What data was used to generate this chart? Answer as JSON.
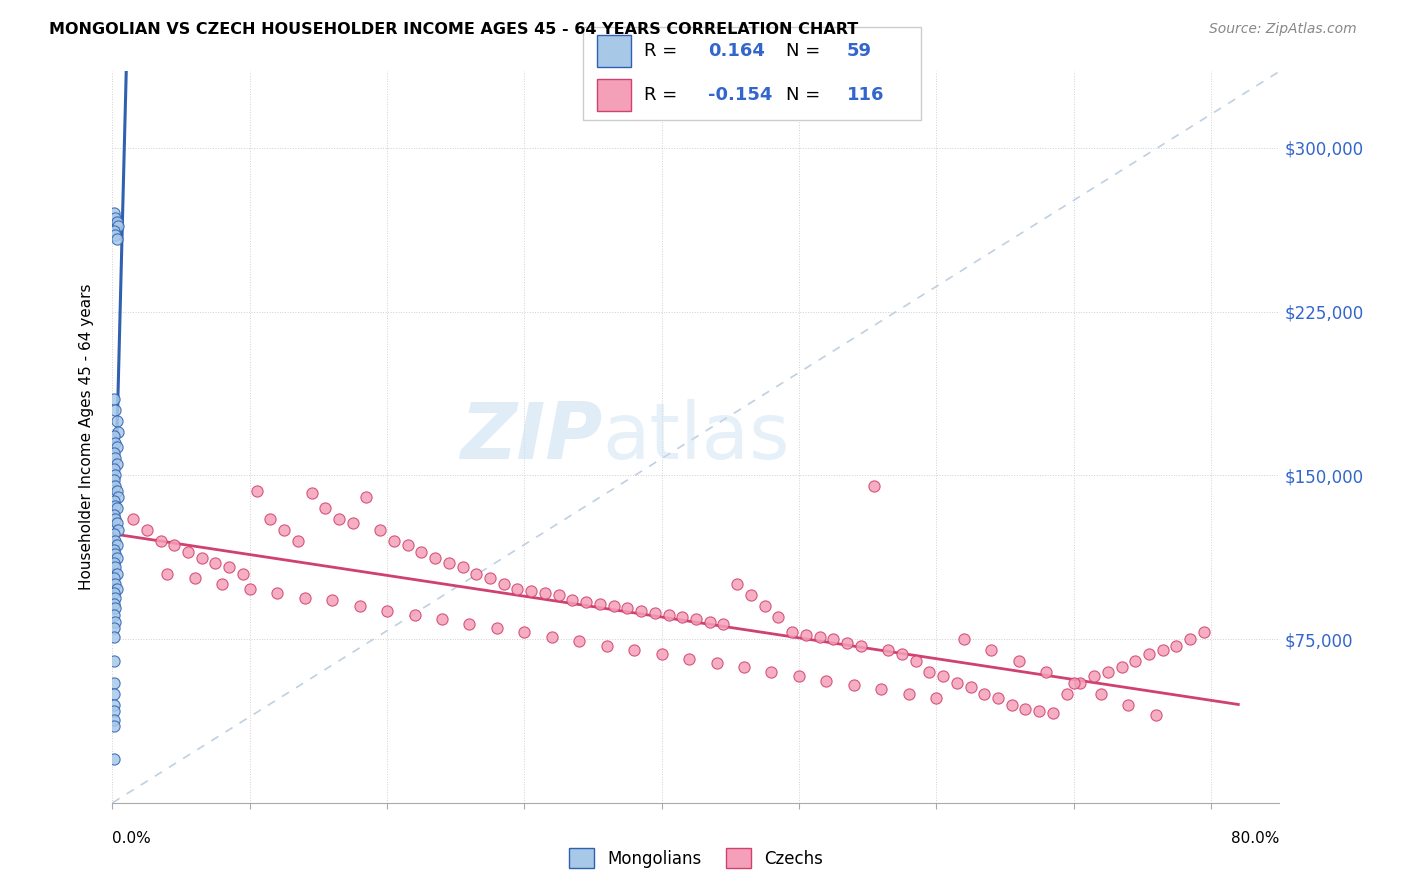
{
  "title": "MONGOLIAN VS CZECH HOUSEHOLDER INCOME AGES 45 - 64 YEARS CORRELATION CHART",
  "source": "Source: ZipAtlas.com",
  "ylabel": "Householder Income Ages 45 - 64 years",
  "mongolian_R": 0.164,
  "mongolian_N": 59,
  "czech_R": -0.154,
  "czech_N": 116,
  "mongolian_color": "#a8c8e8",
  "czech_color": "#f4a0b8",
  "mongolian_line_color": "#3060b0",
  "czech_line_color": "#d04070",
  "diagonal_color": "#c0d0e0",
  "ytick_labels": [
    "$75,000",
    "$150,000",
    "$225,000",
    "$300,000"
  ],
  "ytick_values": [
    75000,
    150000,
    225000,
    300000
  ],
  "ymin": 0,
  "ymax": 335000,
  "xmin": 0.0,
  "xmax": 0.85,
  "mong_x": [
    0.001,
    0.002,
    0.003,
    0.003,
    0.004,
    0.001,
    0.002,
    0.003,
    0.001,
    0.002,
    0.003,
    0.004,
    0.001,
    0.002,
    0.003,
    0.001,
    0.002,
    0.003,
    0.001,
    0.002,
    0.001,
    0.002,
    0.003,
    0.004,
    0.001,
    0.002,
    0.003,
    0.001,
    0.002,
    0.003,
    0.004,
    0.001,
    0.002,
    0.003,
    0.001,
    0.002,
    0.003,
    0.001,
    0.002,
    0.003,
    0.001,
    0.002,
    0.003,
    0.001,
    0.002,
    0.001,
    0.002,
    0.001,
    0.002,
    0.001,
    0.001,
    0.001,
    0.001,
    0.001,
    0.001,
    0.001,
    0.001,
    0.001,
    0.001
  ],
  "mong_y": [
    270000,
    268000,
    265000,
    266000,
    264000,
    262000,
    260000,
    258000,
    185000,
    180000,
    175000,
    170000,
    168000,
    165000,
    163000,
    160000,
    158000,
    155000,
    153000,
    150000,
    148000,
    145000,
    143000,
    140000,
    138000,
    136000,
    135000,
    132000,
    130000,
    128000,
    125000,
    123000,
    120000,
    118000,
    116000,
    114000,
    112000,
    110000,
    108000,
    105000,
    103000,
    100000,
    98000,
    96000,
    94000,
    91000,
    89000,
    86000,
    83000,
    80000,
    76000,
    65000,
    55000,
    50000,
    45000,
    42000,
    38000,
    35000,
    20000
  ],
  "czech_x": [
    0.015,
    0.025,
    0.035,
    0.045,
    0.055,
    0.065,
    0.075,
    0.085,
    0.095,
    0.105,
    0.115,
    0.125,
    0.135,
    0.145,
    0.155,
    0.165,
    0.175,
    0.185,
    0.195,
    0.205,
    0.215,
    0.225,
    0.235,
    0.245,
    0.255,
    0.265,
    0.275,
    0.285,
    0.295,
    0.305,
    0.315,
    0.325,
    0.335,
    0.345,
    0.355,
    0.365,
    0.375,
    0.385,
    0.395,
    0.405,
    0.415,
    0.425,
    0.435,
    0.445,
    0.455,
    0.465,
    0.475,
    0.485,
    0.495,
    0.505,
    0.515,
    0.525,
    0.535,
    0.545,
    0.555,
    0.565,
    0.575,
    0.585,
    0.595,
    0.605,
    0.615,
    0.625,
    0.635,
    0.645,
    0.655,
    0.665,
    0.675,
    0.685,
    0.695,
    0.705,
    0.715,
    0.725,
    0.735,
    0.745,
    0.755,
    0.765,
    0.775,
    0.785,
    0.795,
    0.04,
    0.06,
    0.08,
    0.1,
    0.12,
    0.14,
    0.16,
    0.18,
    0.2,
    0.22,
    0.24,
    0.26,
    0.28,
    0.3,
    0.32,
    0.34,
    0.36,
    0.38,
    0.4,
    0.42,
    0.44,
    0.46,
    0.48,
    0.5,
    0.52,
    0.54,
    0.56,
    0.58,
    0.6,
    0.62,
    0.64,
    0.66,
    0.68,
    0.7,
    0.72,
    0.74,
    0.76
  ],
  "czech_y": [
    130000,
    125000,
    120000,
    118000,
    115000,
    112000,
    110000,
    108000,
    105000,
    143000,
    130000,
    125000,
    120000,
    142000,
    135000,
    130000,
    128000,
    140000,
    125000,
    120000,
    118000,
    115000,
    112000,
    110000,
    108000,
    105000,
    103000,
    100000,
    98000,
    97000,
    96000,
    95000,
    93000,
    92000,
    91000,
    90000,
    89000,
    88000,
    87000,
    86000,
    85000,
    84000,
    83000,
    82000,
    100000,
    95000,
    90000,
    85000,
    78000,
    77000,
    76000,
    75000,
    73000,
    72000,
    145000,
    70000,
    68000,
    65000,
    60000,
    58000,
    55000,
    53000,
    50000,
    48000,
    45000,
    43000,
    42000,
    41000,
    50000,
    55000,
    58000,
    60000,
    62000,
    65000,
    68000,
    70000,
    72000,
    75000,
    78000,
    105000,
    103000,
    100000,
    98000,
    96000,
    94000,
    93000,
    90000,
    88000,
    86000,
    84000,
    82000,
    80000,
    78000,
    76000,
    74000,
    72000,
    70000,
    68000,
    66000,
    64000,
    62000,
    60000,
    58000,
    56000,
    54000,
    52000,
    50000,
    48000,
    75000,
    70000,
    65000,
    60000,
    55000,
    50000,
    45000,
    40000
  ]
}
